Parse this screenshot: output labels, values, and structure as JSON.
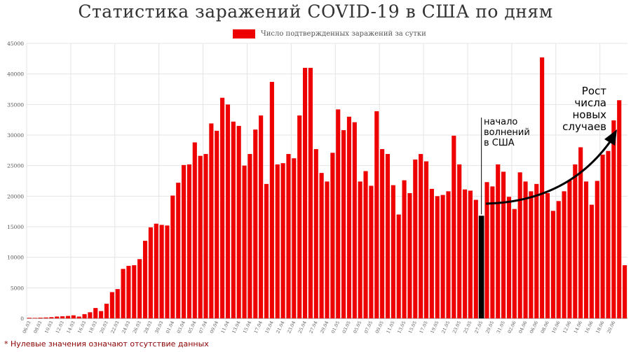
{
  "page_title": "Статистика заражений COVID-19 в США по дням",
  "footnote": "* Нулевые значения означают отсутствие данных",
  "colors": {
    "bar": "#ee0000",
    "highlight_bar": "#000000",
    "grid": "#e4e4e4",
    "annotation": "#000000",
    "footnote": "#8b0000"
  },
  "chart_data": {
    "type": "bar",
    "title": "Статистика заражений COVID-19 в США по дням",
    "xlabel": "",
    "ylabel": "",
    "legend": {
      "position": "top-center",
      "entries": [
        "Число подтвержденных заражений за сутки"
      ]
    },
    "grid": true,
    "ylim": [
      0,
      45000
    ],
    "yticks": [
      0,
      5000,
      10000,
      15000,
      20000,
      25000,
      30000,
      35000,
      40000,
      45000
    ],
    "series": [
      {
        "name": "Число подтвержденных заражений за сутки",
        "values": [
          100,
          80,
          120,
          150,
          200,
          300,
          350,
          400,
          500,
          300,
          700,
          1000,
          1700,
          1200,
          2400,
          4300,
          4800,
          8100,
          8600,
          8700,
          9700,
          12700,
          14900,
          15500,
          15300,
          15200,
          20100,
          22200,
          25100,
          25200,
          28800,
          26600,
          26900,
          31900,
          30700,
          36100,
          35000,
          32200,
          31500,
          25000,
          26900,
          30900,
          33200,
          22000,
          38700,
          25200,
          25400,
          26900,
          26200,
          33200,
          41000,
          41000,
          27700,
          23800,
          22400,
          27100,
          34200,
          30800,
          33000,
          32100,
          22400,
          24100,
          21700,
          33900,
          27700,
          26900,
          21800,
          17000,
          22600,
          20500,
          26000,
          26900,
          25700,
          21200,
          20000,
          20200,
          20800,
          29900,
          25200,
          21100,
          20900,
          19400,
          16800,
          22300,
          21600,
          25200,
          24000,
          19900,
          17900,
          23900,
          22400,
          20800,
          22000,
          42700,
          20500,
          17600,
          19200,
          20800,
          22600,
          25200,
          28000,
          22400,
          18600,
          22500,
          26800,
          27400,
          32400,
          35700,
          8700
        ]
      }
    ],
    "highlight_index": 82,
    "categories": [
      "06.03",
      "07.03",
      "08.03",
      "09.03",
      "10.03",
      "11.03",
      "12.03",
      "13.03",
      "14.03",
      "15.03",
      "16.03",
      "17.03",
      "18.03",
      "19.03",
      "20.03",
      "21.03",
      "22.03",
      "23.03",
      "24.03",
      "25.03",
      "26.03",
      "27.03",
      "28.03",
      "29.03",
      "30.03",
      "31.03",
      "01.04",
      "02.04",
      "03.04",
      "04.04",
      "05.04",
      "06.04",
      "07.04",
      "08.04",
      "09.04",
      "10.04",
      "11.04",
      "12.04",
      "13.04",
      "14.04",
      "15.04",
      "16.04",
      "17.04",
      "18.04",
      "19.04",
      "20.04",
      "21.04",
      "22.04",
      "23.04",
      "24.04",
      "25.04",
      "26.04",
      "27.04",
      "28.04",
      "29.04",
      "30.04",
      "01.05",
      "02.05",
      "03.05",
      "04.05",
      "05.05",
      "06.05",
      "07.05",
      "08.05",
      "09.05",
      "10.05",
      "11.05",
      "12.05",
      "13.05",
      "14.05",
      "15.05",
      "16.05",
      "17.05",
      "18.05",
      "19.05",
      "20.05",
      "21.05",
      "22.05",
      "23.05",
      "24.05",
      "25.05",
      "26.05",
      "27.05",
      "28.05",
      "29.05",
      "30.05",
      "31.05",
      "01.06",
      "02.06",
      "03.06",
      "04.06",
      "05.06",
      "06.06",
      "07.06",
      "08.06",
      "09.06",
      "10.06",
      "11.06",
      "12.06",
      "13.06",
      "14.06",
      "15.06",
      "16.06",
      "17.06",
      "18.06",
      "19.06",
      "20.06",
      "21.06",
      "22.06"
    ],
    "xticks_shown": [
      "06.03",
      "08.03",
      "10.03",
      "12.03",
      "14.03",
      "16.03",
      "18.03",
      "20.03",
      "22.03",
      "24.03",
      "26.03",
      "28.03",
      "30.03",
      "01.04",
      "03.04",
      "05.04",
      "07.04",
      "09.04",
      "11.04",
      "13.04",
      "15.04",
      "17.04",
      "19.04",
      "21.04",
      "23.04",
      "25.04",
      "27.04",
      "29.04",
      "01.05",
      "03.05",
      "05.05",
      "07.05",
      "09.05",
      "11.05",
      "13.05",
      "15.05",
      "17.05",
      "19.05",
      "21.05",
      "23.05",
      "25.05",
      "27.05",
      "29.05",
      "31.05",
      "02.06",
      "04.06",
      "06.06",
      "08.06",
      "10.06",
      "12.06",
      "14.06",
      "16.06",
      "18.06",
      "20.06"
    ],
    "annotations": [
      {
        "id": "protests",
        "index": 82,
        "text": [
          "начало",
          "волнений",
          "в США"
        ]
      },
      {
        "id": "growth",
        "text": [
          "Рост",
          "числа",
          "новых",
          "случаев"
        ]
      }
    ]
  }
}
